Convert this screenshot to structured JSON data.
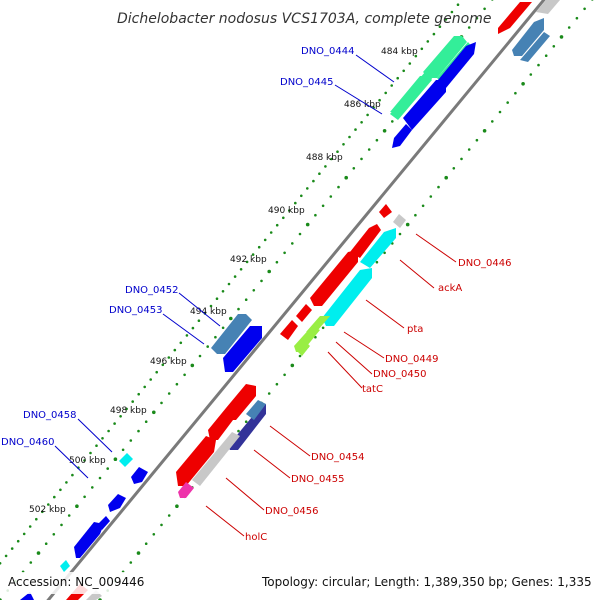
{
  "title": "Dichelobacter nodosus VCS1703A, complete genome",
  "footer": {
    "accession": "Accession: NC_009446",
    "summary": "Topology: circular; Length: 1,389,350 bp; Genes: 1,335"
  },
  "colors": {
    "forward_strand": "#0000ff",
    "reverse_strand": "#ff0000",
    "backbone": "#808080",
    "tick_dots": "#1a8a1a",
    "cds_green": "#33ee99",
    "cds_cyan": "#00eeee",
    "cds_steelblue": "#4682b4",
    "cds_lime": "#99ee44",
    "cds_navy": "#333399",
    "cds_magenta": "#ee33aa",
    "cds_gray": "#c8c8c8"
  },
  "ticks": [
    "484 kbp",
    "486 kbp",
    "488 kbp",
    "490 kbp",
    "492 kbp",
    "494 kbp",
    "496 kbp",
    "498 kbp",
    "500 kbp",
    "502 kbp"
  ],
  "gene_labels": {
    "forward": [
      "DNO_0444",
      "DNO_0445",
      "DNO_0452",
      "DNO_0453",
      "DNO_0458",
      "DNO_0460"
    ],
    "reverse": [
      "DNO_0446",
      "ackA",
      "pta",
      "DNO_0449",
      "DNO_0450",
      "tatC",
      "DNO_0454",
      "DNO_0455",
      "DNO_0456",
      "holC"
    ]
  }
}
